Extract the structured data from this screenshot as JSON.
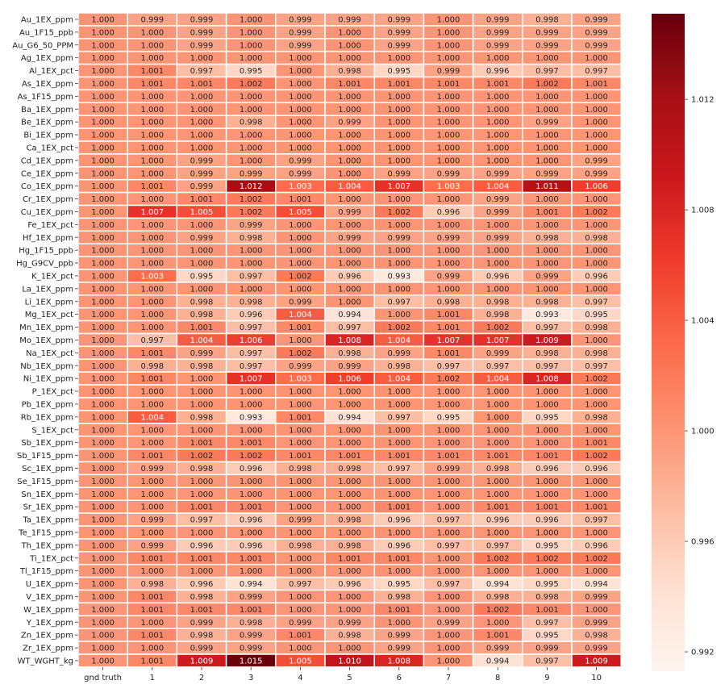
{
  "chart_data": {
    "type": "heatmap",
    "title": "",
    "colormap": "Reds",
    "vmin": 0.9913,
    "vmax": 1.0151,
    "colorbar_ticks": [
      "0.992",
      "0.996",
      "1.000",
      "1.004",
      "1.008",
      "1.012"
    ],
    "columns": [
      "gnd truth",
      "1",
      "2",
      "3",
      "4",
      "5",
      "6",
      "7",
      "8",
      "9",
      "10"
    ],
    "rows": [
      {
        "label": "Au_1EX_ppm",
        "values": [
          "1.000",
          "0.999",
          "0.999",
          "1.000",
          "0.999",
          "0.999",
          "0.999",
          "1.000",
          "0.999",
          "0.998",
          "0.999"
        ]
      },
      {
        "label": "Au_1F15_ppb",
        "values": [
          "1.000",
          "1.000",
          "0.999",
          "1.000",
          "0.999",
          "1.000",
          "0.999",
          "1.000",
          "0.999",
          "0.999",
          "0.999"
        ]
      },
      {
        "label": "Au_G6_50_PPM",
        "values": [
          "1.000",
          "1.000",
          "0.999",
          "1.000",
          "0.999",
          "1.000",
          "0.999",
          "1.000",
          "0.999",
          "0.999",
          "0.999"
        ]
      },
      {
        "label": "Ag_1EX_ppm",
        "values": [
          "1.000",
          "1.000",
          "1.000",
          "1.000",
          "1.000",
          "1.000",
          "1.000",
          "1.000",
          "1.000",
          "1.000",
          "1.000"
        ]
      },
      {
        "label": "Al_1EX_pct",
        "values": [
          "1.000",
          "1.001",
          "0.997",
          "0.995",
          "1.000",
          "0.998",
          "0.995",
          "0.999",
          "0.996",
          "0.997",
          "0.997"
        ]
      },
      {
        "label": "As_1EX_ppm",
        "values": [
          "1.000",
          "1.001",
          "1.001",
          "1.002",
          "1.000",
          "1.001",
          "1.001",
          "1.001",
          "1.001",
          "1.002",
          "1.001"
        ]
      },
      {
        "label": "As_1F15_ppm",
        "values": [
          "1.000",
          "1.000",
          "1.000",
          "1.000",
          "1.000",
          "1.000",
          "1.000",
          "1.000",
          "1.000",
          "1.000",
          "1.000"
        ]
      },
      {
        "label": "Ba_1EX_ppm",
        "values": [
          "1.000",
          "1.000",
          "1.000",
          "1.000",
          "1.000",
          "1.000",
          "1.000",
          "1.000",
          "1.000",
          "1.000",
          "1.000"
        ]
      },
      {
        "label": "Be_1EX_ppm",
        "values": [
          "1.000",
          "1.000",
          "1.000",
          "0.998",
          "1.000",
          "0.999",
          "1.000",
          "1.000",
          "1.000",
          "0.999",
          "1.000"
        ]
      },
      {
        "label": "Bi_1EX_ppm",
        "values": [
          "1.000",
          "1.000",
          "1.000",
          "1.000",
          "1.000",
          "1.000",
          "1.000",
          "1.000",
          "1.000",
          "1.000",
          "1.000"
        ]
      },
      {
        "label": "Ca_1EX_pct",
        "values": [
          "1.000",
          "1.000",
          "1.000",
          "1.000",
          "1.000",
          "1.000",
          "1.000",
          "1.000",
          "1.000",
          "1.000",
          "1.000"
        ]
      },
      {
        "label": "Cd_1EX_ppm",
        "values": [
          "1.000",
          "1.000",
          "0.999",
          "1.000",
          "0.999",
          "1.000",
          "1.000",
          "1.000",
          "1.000",
          "1.000",
          "0.999"
        ]
      },
      {
        "label": "Ce_1EX_ppm",
        "values": [
          "1.000",
          "1.000",
          "0.999",
          "0.999",
          "0.999",
          "1.000",
          "0.999",
          "0.999",
          "0.999",
          "0.999",
          "0.999"
        ]
      },
      {
        "label": "Co_1EX_ppm",
        "values": [
          "1.000",
          "1.001",
          "0.999",
          "1.012",
          "1.003",
          "1.004",
          "1.007",
          "1.003",
          "1.004",
          "1.011",
          "1.006"
        ]
      },
      {
        "label": "Cr_1EX_ppm",
        "values": [
          "1.000",
          "1.000",
          "1.001",
          "1.002",
          "1.001",
          "1.000",
          "1.000",
          "1.000",
          "0.999",
          "1.000",
          "1.000"
        ]
      },
      {
        "label": "Cu_1EX_ppm",
        "values": [
          "1.000",
          "1.007",
          "1.005",
          "1.002",
          "1.005",
          "0.999",
          "1.002",
          "0.996",
          "0.999",
          "1.001",
          "1.002"
        ]
      },
      {
        "label": "Fe_1EX_pct",
        "values": [
          "1.000",
          "1.000",
          "1.000",
          "0.999",
          "1.000",
          "1.000",
          "1.000",
          "1.000",
          "1.000",
          "1.000",
          "1.000"
        ]
      },
      {
        "label": "Hf_1EX_ppm",
        "values": [
          "1.000",
          "1.000",
          "0.999",
          "0.998",
          "1.000",
          "0.999",
          "0.999",
          "0.999",
          "0.999",
          "0.998",
          "0.998"
        ]
      },
      {
        "label": "Hg_1F15_ppb",
        "values": [
          "1.000",
          "1.000",
          "1.000",
          "1.000",
          "1.000",
          "1.000",
          "1.000",
          "1.000",
          "1.000",
          "1.000",
          "1.000"
        ]
      },
      {
        "label": "Hg_G9CV_ppb",
        "values": [
          "1.000",
          "1.000",
          "1.000",
          "1.000",
          "1.000",
          "1.000",
          "1.000",
          "1.000",
          "1.000",
          "1.000",
          "1.000"
        ]
      },
      {
        "label": "K_1EX_pct",
        "values": [
          "1.000",
          "1.003",
          "0.995",
          "0.997",
          "1.002",
          "0.996",
          "0.993",
          "0.999",
          "0.996",
          "0.999",
          "0.996"
        ]
      },
      {
        "label": "La_1EX_ppm",
        "values": [
          "1.000",
          "1.000",
          "1.000",
          "1.000",
          "1.000",
          "1.000",
          "1.000",
          "1.000",
          "1.000",
          "1.000",
          "1.000"
        ]
      },
      {
        "label": "Li_1EX_ppm",
        "values": [
          "1.000",
          "1.000",
          "0.998",
          "0.998",
          "0.999",
          "1.000",
          "0.997",
          "0.998",
          "0.998",
          "0.998",
          "0.997"
        ]
      },
      {
        "label": "Mg_1EX_pct",
        "values": [
          "1.000",
          "1.000",
          "0.998",
          "0.996",
          "1.004",
          "0.994",
          "1.000",
          "1.001",
          "0.998",
          "0.993",
          "0.995"
        ]
      },
      {
        "label": "Mn_1EX_ppm",
        "values": [
          "1.000",
          "1.000",
          "1.001",
          "0.997",
          "1.001",
          "0.997",
          "1.002",
          "1.001",
          "1.002",
          "0.997",
          "0.998"
        ]
      },
      {
        "label": "Mo_1EX_ppm",
        "values": [
          "1.000",
          "0.997",
          "1.004",
          "1.006",
          "1.000",
          "1.008",
          "1.004",
          "1.007",
          "1.007",
          "1.009",
          "1.000"
        ]
      },
      {
        "label": "Na_1EX_pct",
        "values": [
          "1.000",
          "1.001",
          "0.999",
          "0.997",
          "1.002",
          "0.998",
          "0.999",
          "1.001",
          "0.999",
          "0.998",
          "0.998"
        ]
      },
      {
        "label": "Nb_1EX_ppm",
        "values": [
          "1.000",
          "0.998",
          "0.998",
          "0.997",
          "0.999",
          "0.999",
          "0.998",
          "0.997",
          "0.997",
          "0.997",
          "0.997"
        ]
      },
      {
        "label": "Ni_1EX_ppm",
        "values": [
          "1.000",
          "1.001",
          "1.000",
          "1.007",
          "1.003",
          "1.006",
          "1.004",
          "1.002",
          "1.004",
          "1.008",
          "1.002"
        ]
      },
      {
        "label": "P_1EX_pct",
        "values": [
          "1.000",
          "1.000",
          "1.000",
          "1.000",
          "1.000",
          "1.000",
          "1.000",
          "1.000",
          "1.000",
          "1.000",
          "1.000"
        ]
      },
      {
        "label": "Pb_1EX_ppm",
        "values": [
          "1.000",
          "1.000",
          "1.000",
          "1.000",
          "1.000",
          "1.000",
          "1.000",
          "1.000",
          "1.000",
          "1.000",
          "1.000"
        ]
      },
      {
        "label": "Rb_1EX_ppm",
        "values": [
          "1.000",
          "1.004",
          "0.998",
          "0.993",
          "1.001",
          "0.994",
          "0.997",
          "0.995",
          "1.000",
          "0.995",
          "0.998"
        ]
      },
      {
        "label": "S_1EX_pct",
        "values": [
          "1.000",
          "1.000",
          "1.000",
          "1.000",
          "1.000",
          "1.000",
          "1.000",
          "1.000",
          "1.000",
          "1.000",
          "1.000"
        ]
      },
      {
        "label": "Sb_1EX_ppm",
        "values": [
          "1.000",
          "1.000",
          "1.001",
          "1.001",
          "1.000",
          "1.000",
          "1.000",
          "1.000",
          "1.000",
          "1.000",
          "1.001"
        ]
      },
      {
        "label": "Sb_1F15_ppm",
        "values": [
          "1.000",
          "1.001",
          "1.002",
          "1.002",
          "1.001",
          "1.001",
          "1.001",
          "1.001",
          "1.001",
          "1.001",
          "1.002"
        ]
      },
      {
        "label": "Sc_1EX_ppm",
        "values": [
          "1.000",
          "0.999",
          "0.998",
          "0.996",
          "0.998",
          "0.998",
          "0.997",
          "0.999",
          "0.998",
          "0.996",
          "0.996"
        ]
      },
      {
        "label": "Se_1F15_ppm",
        "values": [
          "1.000",
          "1.000",
          "1.000",
          "1.000",
          "1.000",
          "1.000",
          "1.000",
          "1.000",
          "1.000",
          "1.000",
          "1.000"
        ]
      },
      {
        "label": "Sn_1EX_ppm",
        "values": [
          "1.000",
          "1.000",
          "1.000",
          "1.000",
          "1.000",
          "1.000",
          "1.000",
          "1.000",
          "1.000",
          "1.000",
          "1.000"
        ]
      },
      {
        "label": "Sr_1EX_ppm",
        "values": [
          "1.000",
          "1.000",
          "1.001",
          "1.001",
          "1.000",
          "1.000",
          "1.001",
          "1.000",
          "1.001",
          "1.001",
          "1.001"
        ]
      },
      {
        "label": "Ta_1EX_ppm",
        "values": [
          "1.000",
          "0.999",
          "0.997",
          "0.996",
          "0.999",
          "0.998",
          "0.996",
          "0.997",
          "0.996",
          "0.996",
          "0.997"
        ]
      },
      {
        "label": "Te_1F15_ppm",
        "values": [
          "1.000",
          "1.000",
          "1.000",
          "1.000",
          "1.000",
          "1.000",
          "1.000",
          "1.000",
          "1.000",
          "1.000",
          "1.000"
        ]
      },
      {
        "label": "Th_1EX_ppm",
        "values": [
          "1.000",
          "0.999",
          "0.996",
          "0.996",
          "0.998",
          "0.998",
          "0.996",
          "0.997",
          "0.997",
          "0.995",
          "0.996"
        ]
      },
      {
        "label": "Ti_1EX_pct",
        "values": [
          "1.000",
          "1.001",
          "1.001",
          "1.001",
          "1.000",
          "1.001",
          "1.001",
          "1.000",
          "1.002",
          "1.002",
          "1.002"
        ]
      },
      {
        "label": "Tl_1F15_ppm",
        "values": [
          "1.000",
          "1.000",
          "1.000",
          "1.000",
          "1.000",
          "1.000",
          "1.000",
          "1.000",
          "1.000",
          "1.000",
          "1.000"
        ]
      },
      {
        "label": "U_1EX_ppm",
        "values": [
          "1.000",
          "0.998",
          "0.996",
          "0.994",
          "0.997",
          "0.996",
          "0.995",
          "0.997",
          "0.994",
          "0.995",
          "0.994"
        ]
      },
      {
        "label": "V_1EX_ppm",
        "values": [
          "1.000",
          "1.001",
          "0.998",
          "0.999",
          "1.000",
          "1.000",
          "0.998",
          "1.000",
          "0.998",
          "0.998",
          "0.999"
        ]
      },
      {
        "label": "W_1EX_ppm",
        "values": [
          "1.000",
          "1.001",
          "1.001",
          "1.001",
          "1.000",
          "1.000",
          "1.001",
          "1.000",
          "1.002",
          "1.001",
          "1.000"
        ]
      },
      {
        "label": "Y_1EX_ppm",
        "values": [
          "1.000",
          "1.000",
          "0.999",
          "0.998",
          "0.999",
          "0.999",
          "1.000",
          "0.999",
          "1.000",
          "0.997",
          "0.999"
        ]
      },
      {
        "label": "Zn_1EX_ppm",
        "values": [
          "1.000",
          "1.001",
          "0.998",
          "0.999",
          "1.001",
          "0.998",
          "0.999",
          "1.000",
          "1.001",
          "0.995",
          "0.998"
        ]
      },
      {
        "label": "Zr_1EX_ppm",
        "values": [
          "1.000",
          "1.000",
          "0.999",
          "0.999",
          "1.000",
          "1.000",
          "0.999",
          "1.000",
          "0.999",
          "0.999",
          "0.999"
        ]
      },
      {
        "label": "WT_WGHT_kg",
        "values": [
          "1.000",
          "1.001",
          "1.009",
          "1.015",
          "1.005",
          "1.010",
          "1.008",
          "1.000",
          "0.994",
          "0.997",
          "1.009"
        ]
      }
    ]
  }
}
